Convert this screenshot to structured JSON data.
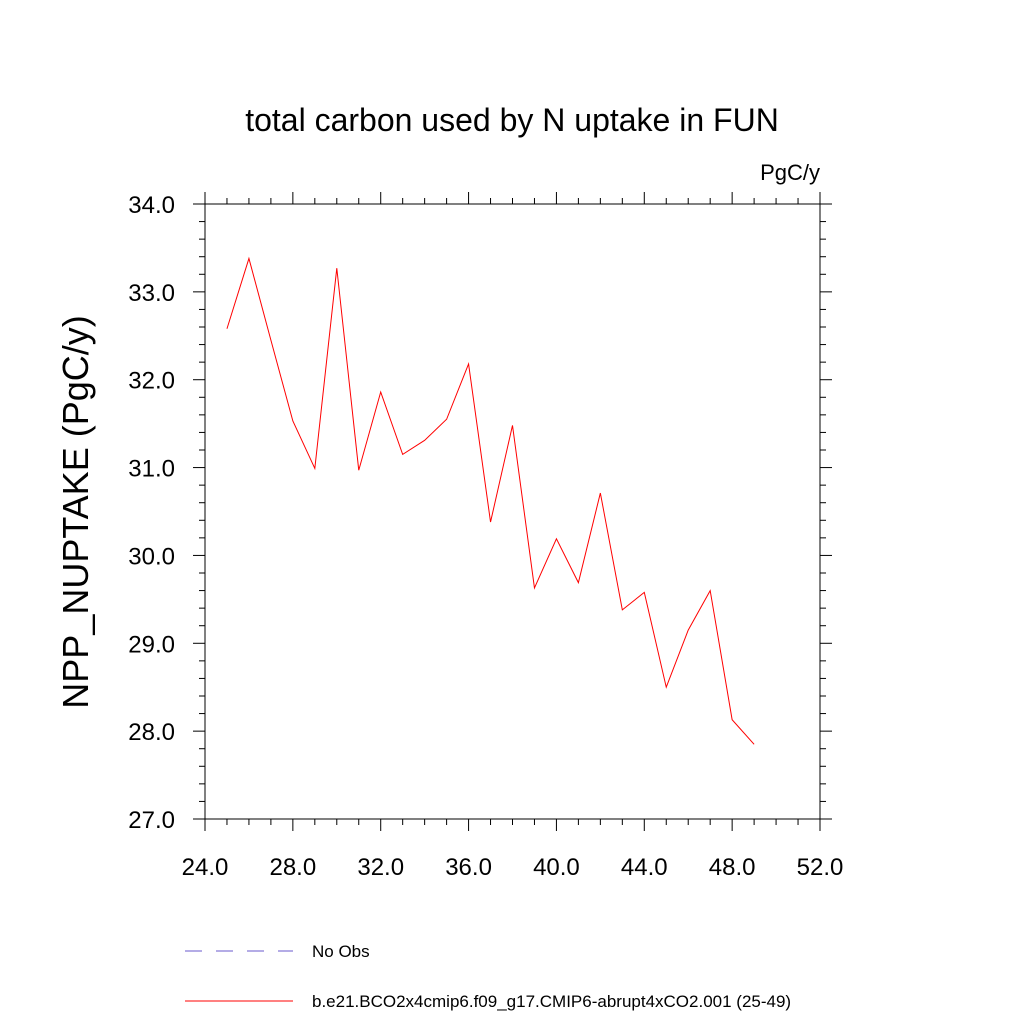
{
  "chart_data": {
    "type": "line",
    "title": "total carbon used by N uptake in FUN",
    "units_label": "PgC/y",
    "xlabel": "",
    "ylabel": "NPP_NUPTAKE  (PgC/y)",
    "xlim": [
      24.0,
      52.0
    ],
    "ylim": [
      27.0,
      34.0
    ],
    "x_ticks": [
      "24.0",
      "28.0",
      "32.0",
      "36.0",
      "40.0",
      "44.0",
      "48.0",
      "52.0"
    ],
    "y_ticks": [
      "27.0",
      "28.0",
      "29.0",
      "30.0",
      "31.0",
      "32.0",
      "33.0",
      "34.0"
    ],
    "grid": false,
    "legend_position": "bottom",
    "series": [
      {
        "name": "b.e21.BCO2x4cmip6.f09_g17.CMIP6-abrupt4xCO2.001 (25-49)",
        "color": "#ff0000",
        "style": "solid",
        "x": [
          25,
          26,
          27,
          28,
          29,
          30,
          31,
          32,
          33,
          34,
          35,
          36,
          37,
          38,
          39,
          40,
          41,
          42,
          43,
          44,
          45,
          46,
          47,
          48,
          49
        ],
        "y": [
          32.58,
          33.38,
          32.45,
          31.53,
          30.99,
          33.27,
          30.97,
          31.86,
          31.15,
          31.31,
          31.55,
          32.18,
          30.38,
          31.48,
          29.63,
          30.19,
          29.69,
          30.71,
          29.38,
          29.58,
          28.5,
          29.15,
          29.6,
          28.13,
          27.85
        ]
      }
    ],
    "legend": [
      {
        "label": "No Obs",
        "color": "#6a5acd",
        "style": "dashed"
      },
      {
        "label": "b.e21.BCO2x4cmip6.f09_g17.CMIP6-abrupt4xCO2.001 (25-49)",
        "color": "#ff0000",
        "style": "solid"
      }
    ]
  }
}
